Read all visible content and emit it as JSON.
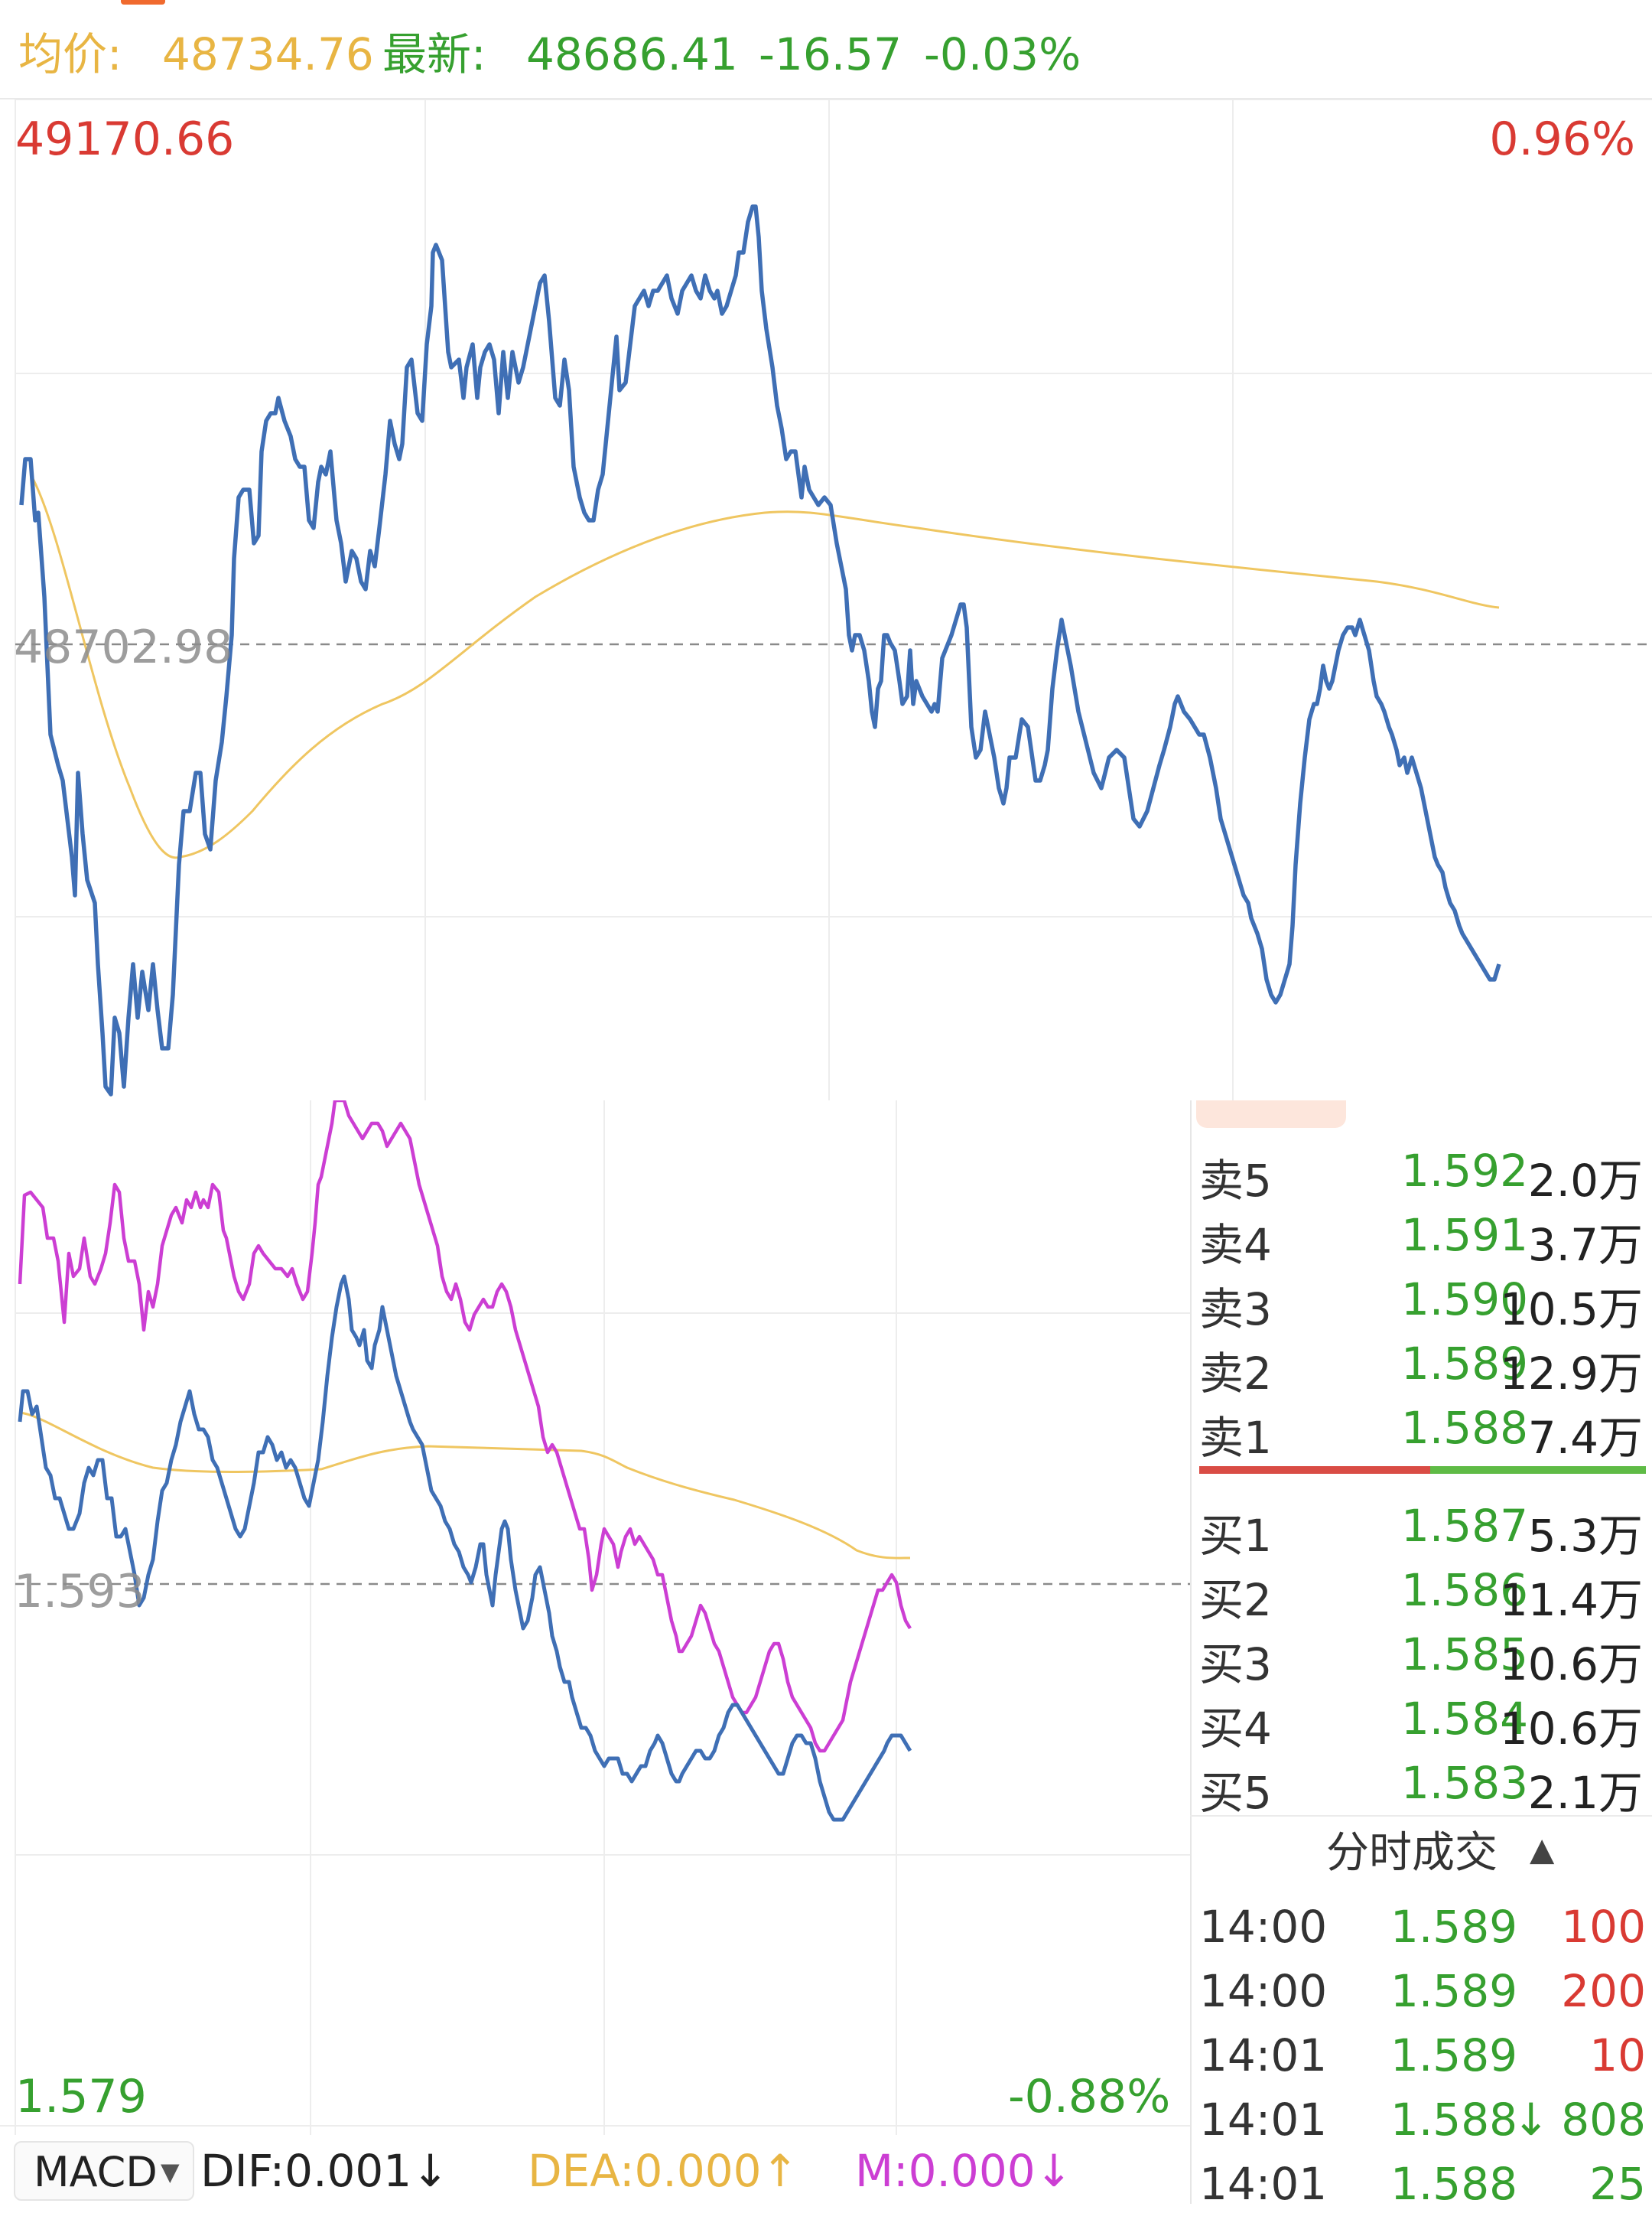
{
  "header": {
    "avg_label": "均价:",
    "avg_value": "48734.76",
    "latest_label": "最新:",
    "latest_value": "48686.41",
    "change": "-16.57",
    "change_pct": "-0.03%"
  },
  "price_chart": {
    "max_price": "49170.66",
    "max_pct": "0.96%",
    "base_price": "48702.98"
  },
  "lower_chart": {
    "base_price": "1.593",
    "min_price": "1.579",
    "min_pct": "-0.88%"
  },
  "indicator": {
    "name": "MACD",
    "dif": "DIF:0.001↓",
    "dea": "DEA:0.000↑",
    "m": "M:0.000↓"
  },
  "order_book": {
    "asks": [
      {
        "label": "卖5",
        "price": "1.592",
        "volume": "2.0万"
      },
      {
        "label": "卖4",
        "price": "1.591",
        "volume": "3.7万"
      },
      {
        "label": "卖3",
        "price": "1.590",
        "volume": "10.5万"
      },
      {
        "label": "卖2",
        "price": "1.589",
        "volume": "12.9万"
      },
      {
        "label": "卖1",
        "price": "1.588",
        "volume": "7.4万"
      }
    ],
    "bids": [
      {
        "label": "买1",
        "price": "1.587",
        "volume": "5.3万"
      },
      {
        "label": "买2",
        "price": "1.586",
        "volume": "11.4万"
      },
      {
        "label": "买3",
        "price": "1.585",
        "volume": "10.6万"
      },
      {
        "label": "买4",
        "price": "1.584",
        "volume": "10.6万"
      },
      {
        "label": "买5",
        "price": "1.583",
        "volume": "2.1万"
      }
    ]
  },
  "ticks": {
    "title": "分时成交",
    "rows": [
      {
        "time": "14:00",
        "price": "1.589",
        "arrow": "",
        "volume": "100",
        "side": "buy"
      },
      {
        "time": "14:00",
        "price": "1.589",
        "arrow": "",
        "volume": "200",
        "side": "buy"
      },
      {
        "time": "14:01",
        "price": "1.589",
        "arrow": "",
        "volume": "10",
        "side": "buy"
      },
      {
        "time": "14:01",
        "price": "1.588",
        "arrow": "↓",
        "volume": "808",
        "side": "sell"
      },
      {
        "time": "14:01",
        "price": "1.588",
        "arrow": "",
        "volume": "25",
        "side": "sell"
      }
    ]
  },
  "colors": {
    "up": "#d93a33",
    "down": "#36a02f",
    "price_line": "#3f6fb5",
    "avg_line": "#efc661",
    "macd_magenta": "#cc3ed3"
  }
}
